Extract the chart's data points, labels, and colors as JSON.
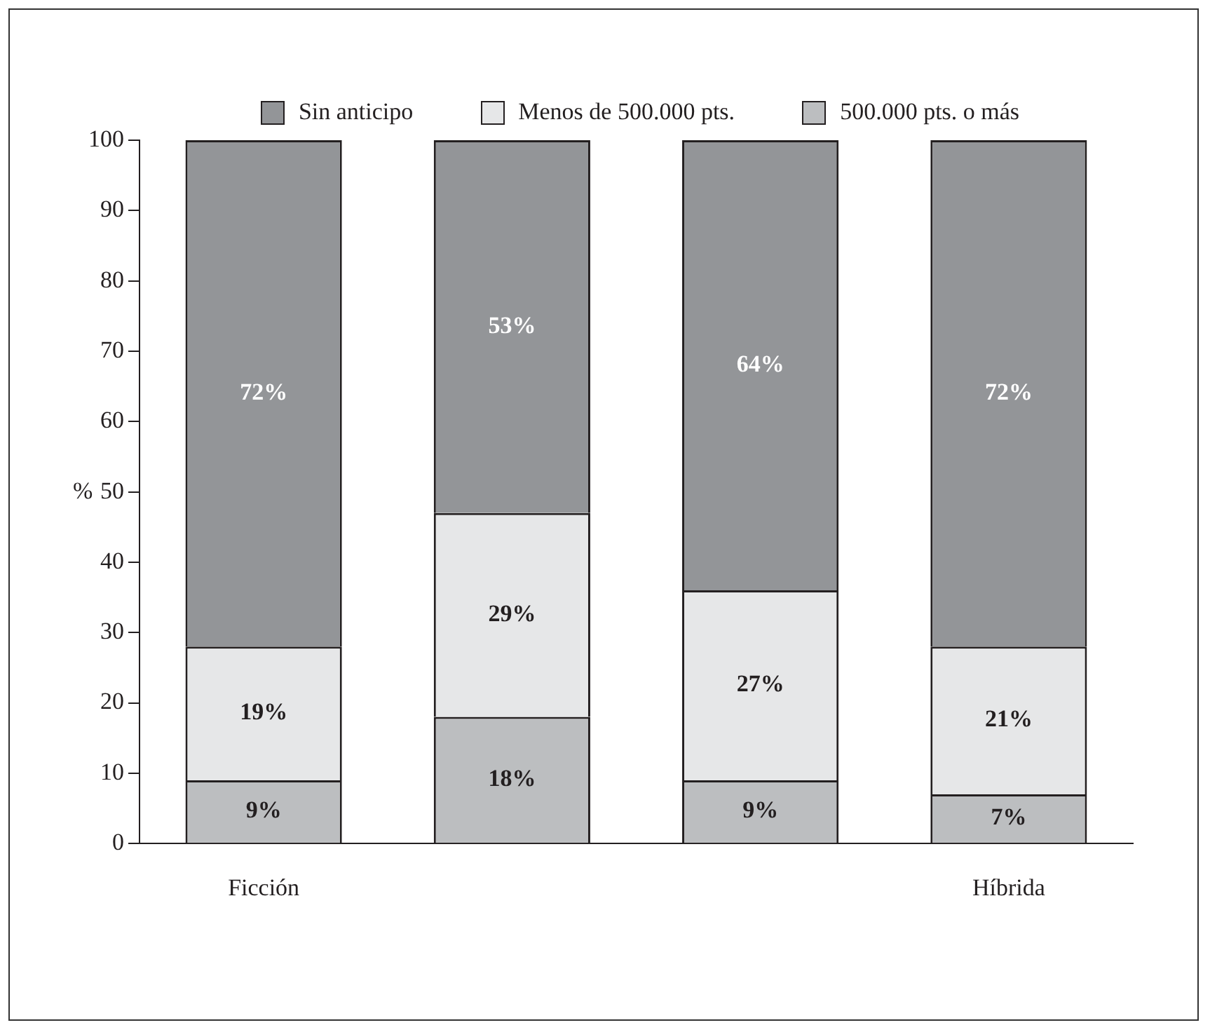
{
  "chart_data": {
    "type": "bar",
    "stacked": true,
    "ylabel": "%",
    "categories": [
      "Ficción",
      null,
      null,
      "Híbrida"
    ],
    "series": [
      {
        "name": "500.000 pts. o más",
        "color": "#bcbec0",
        "values": [
          9,
          18,
          9,
          7
        ],
        "value_labels": [
          "9%",
          "18%",
          "9%",
          "7%"
        ]
      },
      {
        "name": "Menos de 500.000 pts.",
        "color": "#e6e7e8",
        "values": [
          19,
          29,
          27,
          21
        ],
        "value_labels": [
          "19%",
          "29%",
          "27%",
          "21%"
        ]
      },
      {
        "name": "Sin anticipo",
        "color": "#939598",
        "values": [
          72,
          53,
          64,
          72
        ],
        "value_labels": [
          "72%",
          "53%",
          "64%",
          "72%"
        ]
      }
    ],
    "ylim": [
      0,
      100
    ],
    "yticks": [
      0,
      10,
      20,
      30,
      40,
      50,
      60,
      70,
      80,
      90,
      100
    ],
    "grid": false,
    "legend": "top"
  }
}
